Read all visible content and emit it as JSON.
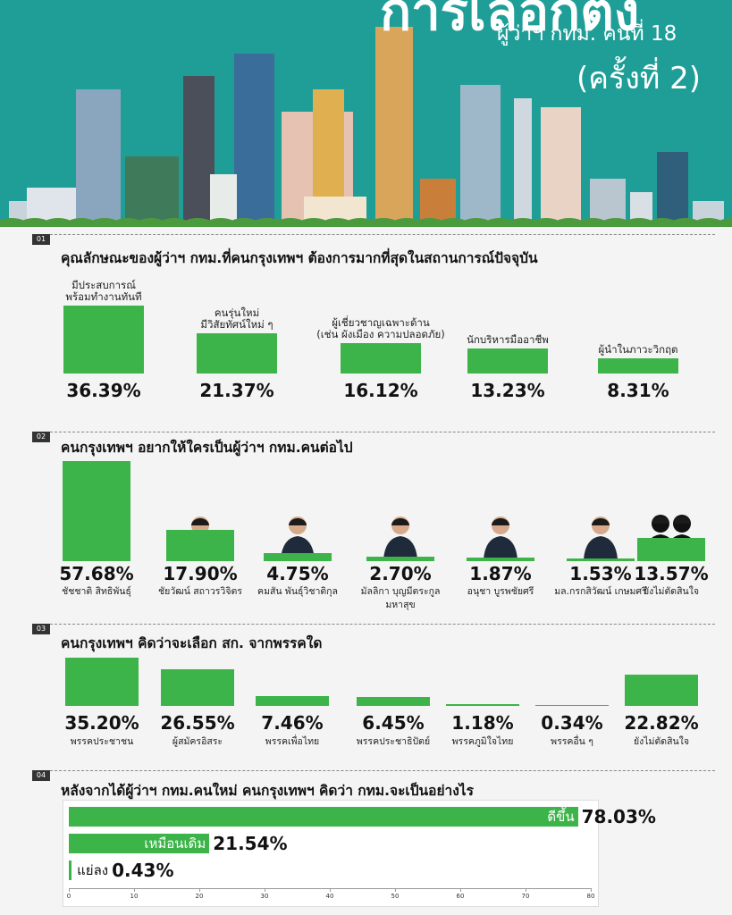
{
  "header": {
    "title": "การเลือกตั้ง",
    "subtitle": "ผู้ว่าฯ กทม. คนที่ 18",
    "round": "(ครั้งที่ 2)"
  },
  "chart_data": [
    {
      "type": "bar",
      "number": "01",
      "title": "คุณลักษณะของผู้ว่าฯ กทม.ที่คนกรุงเทพฯ ต้องการมากที่สุดในสถานการณ์ปัจจุบัน",
      "categories": [
        "มีประสบการณ์\nพร้อมทำงานทันที",
        "คนรุ่นใหม่\nมีวิสัยทัศน์ใหม่ ๆ",
        "ผู้เชี่ยวชาญเฉพาะด้าน\n(เช่น ผังเมือง ความปลอดภัย)",
        "นักบริหารมืออาชีพ",
        "ผู้นำในภาวะวิกฤต"
      ],
      "values": [
        36.39,
        21.37,
        16.12,
        13.23,
        8.31
      ],
      "value_labels": [
        "36.39%",
        "21.37%",
        "16.12%",
        "13.23%",
        "8.31%"
      ],
      "color": "#3db449"
    },
    {
      "type": "bar",
      "number": "02",
      "title": "คนกรุงเทพฯ อยากให้ใครเป็นผู้ว่าฯ กทม.คนต่อไป",
      "categories": [
        "ชัชชาติ สิทธิพันธุ์",
        "ชัยวัฒน์ สถาวรวิจิตร",
        "คมสัน พันธุ์วิชาติกุล",
        "มัลลิกา บุญมีตระกูล\nมหาสุข",
        "อนุชา บูรพชัยศรี",
        "มล.กรกสิวัฒน์ เกษมศรี",
        "ยังไม่ตัดสินใจ"
      ],
      "values": [
        57.68,
        17.9,
        4.75,
        2.7,
        1.87,
        1.53,
        13.57
      ],
      "value_labels": [
        "57.68%",
        "17.90%",
        "4.75%",
        "2.70%",
        "1.87%",
        "1.53%",
        "13.57%"
      ],
      "color": "#3db449"
    },
    {
      "type": "bar",
      "number": "03",
      "title": "คนกรุงเทพฯ คิดว่าจะเลือก สก. จากพรรคใด",
      "categories": [
        "พรรคประชาชน",
        "ผู้สมัครอิสระ",
        "พรรคเพื่อไทย",
        "พรรคประชาธิปัตย์",
        "พรรคภูมิใจไทย",
        "พรรคอื่น ๆ",
        "ยังไม่ตัดสินใจ"
      ],
      "values": [
        35.2,
        26.55,
        7.46,
        6.45,
        1.18,
        0.34,
        22.82
      ],
      "value_labels": [
        "35.20%",
        "26.55%",
        "7.46%",
        "6.45%",
        "1.18%",
        "0.34%",
        "22.82%"
      ],
      "color": "#3db449"
    },
    {
      "type": "hbar",
      "number": "04",
      "title": "หลังจากได้ผู้ว่าฯ กทม.คนใหม่ คนกรุงเทพฯ คิดว่า กทม.จะเป็นอย่างไร",
      "categories": [
        "ดีขึ้น",
        "เหมือนเดิม",
        "แย่ลง"
      ],
      "values": [
        78.03,
        21.54,
        0.43
      ],
      "value_labels": [
        "78.03%",
        "21.54%",
        "0.43%"
      ],
      "color": "#3db449",
      "xlim": [
        0,
        80
      ],
      "xticks": [
        0,
        10,
        20,
        30,
        40,
        50,
        60,
        70,
        80
      ]
    }
  ]
}
